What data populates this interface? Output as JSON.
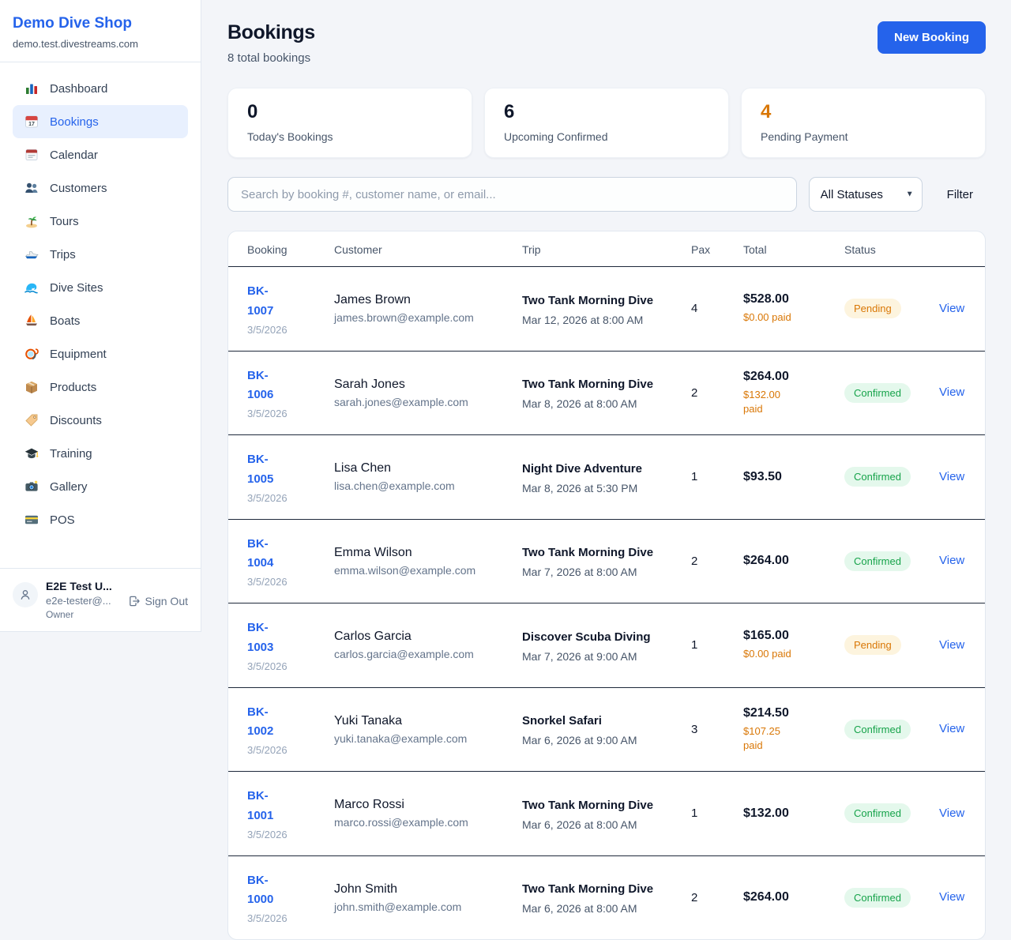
{
  "sidebar": {
    "title": "Demo Dive Shop",
    "domain": "demo.test.divestreams.com",
    "items": [
      {
        "label": "Dashboard",
        "icon": "bar-chart"
      },
      {
        "label": "Bookings",
        "icon": "calendar-date",
        "active": true
      },
      {
        "label": "Calendar",
        "icon": "calendar-pad"
      },
      {
        "label": "Customers",
        "icon": "people"
      },
      {
        "label": "Tours",
        "icon": "island"
      },
      {
        "label": "Trips",
        "icon": "speedboat"
      },
      {
        "label": "Dive Sites",
        "icon": "wave"
      },
      {
        "label": "Boats",
        "icon": "sailboat"
      },
      {
        "label": "Equipment",
        "icon": "dive-mask"
      },
      {
        "label": "Products",
        "icon": "package"
      },
      {
        "label": "Discounts",
        "icon": "tag"
      },
      {
        "label": "Training",
        "icon": "graduation-cap"
      },
      {
        "label": "Gallery",
        "icon": "camera"
      },
      {
        "label": "POS",
        "icon": "credit-card"
      }
    ],
    "user": {
      "name": "E2E Test U...",
      "email": "e2e-tester@...",
      "role": "Owner",
      "sign_out_label": "Sign Out"
    }
  },
  "header": {
    "title": "Bookings",
    "subtitle": "8 total bookings",
    "new_booking_label": "New Booking"
  },
  "stats": [
    {
      "value": "0",
      "label": "Today's Bookings"
    },
    {
      "value": "6",
      "label": "Upcoming Confirmed"
    },
    {
      "value": "4",
      "label": "Pending Payment",
      "color": "orange"
    }
  ],
  "filters": {
    "search_placeholder": "Search by booking #, customer name, or email...",
    "status_selected": "All Statuses",
    "filter_label": "Filter"
  },
  "table": {
    "columns": [
      "Booking",
      "Customer",
      "Trip",
      "Pax",
      "Total",
      "Status"
    ],
    "view_label": "View",
    "rows": [
      {
        "booking_id": "BK-1007",
        "booking_date": "3/5/2026",
        "customer_name": "James Brown",
        "customer_email": "james.brown@example.com",
        "trip_name": "Two Tank Morning Dive",
        "trip_datetime": "Mar 12, 2026 at 8:00 AM",
        "pax": "4",
        "total": "$528.00",
        "paid": "$0.00 paid",
        "status": "Pending"
      },
      {
        "booking_id": "BK-1006",
        "booking_date": "3/5/2026",
        "customer_name": "Sarah Jones",
        "customer_email": "sarah.jones@example.com",
        "trip_name": "Two Tank Morning Dive",
        "trip_datetime": "Mar 8, 2026 at 8:00 AM",
        "pax": "2",
        "total": "$264.00",
        "paid": "$132.00 paid",
        "status": "Confirmed"
      },
      {
        "booking_id": "BK-1005",
        "booking_date": "3/5/2026",
        "customer_name": "Lisa Chen",
        "customer_email": "lisa.chen@example.com",
        "trip_name": "Night Dive Adventure",
        "trip_datetime": "Mar 8, 2026 at 5:30 PM",
        "pax": "1",
        "total": "$93.50",
        "status": "Confirmed"
      },
      {
        "booking_id": "BK-1004",
        "booking_date": "3/5/2026",
        "customer_name": "Emma Wilson",
        "customer_email": "emma.wilson@example.com",
        "trip_name": "Two Tank Morning Dive",
        "trip_datetime": "Mar 7, 2026 at 8:00 AM",
        "pax": "2",
        "total": "$264.00",
        "status": "Confirmed"
      },
      {
        "booking_id": "BK-1003",
        "booking_date": "3/5/2026",
        "customer_name": "Carlos Garcia",
        "customer_email": "carlos.garcia@example.com",
        "trip_name": "Discover Scuba Diving",
        "trip_datetime": "Mar 7, 2026 at 9:00 AM",
        "pax": "1",
        "total": "$165.00",
        "paid": "$0.00 paid",
        "status": "Pending"
      },
      {
        "booking_id": "BK-1002",
        "booking_date": "3/5/2026",
        "customer_name": "Yuki Tanaka",
        "customer_email": "yuki.tanaka@example.com",
        "trip_name": "Snorkel Safari",
        "trip_datetime": "Mar 6, 2026 at 9:00 AM",
        "pax": "3",
        "total": "$214.50",
        "paid": "$107.25 paid",
        "status": "Confirmed"
      },
      {
        "booking_id": "BK-1001",
        "booking_date": "3/5/2026",
        "customer_name": "Marco Rossi",
        "customer_email": "marco.rossi@example.com",
        "trip_name": "Two Tank Morning Dive",
        "trip_datetime": "Mar 6, 2026 at 8:00 AM",
        "pax": "1",
        "total": "$132.00",
        "status": "Confirmed"
      },
      {
        "booking_id": "BK-1000",
        "booking_date": "3/5/2026",
        "customer_name": "John Smith",
        "customer_email": "john.smith@example.com",
        "trip_name": "Two Tank Morning Dive",
        "trip_datetime": "Mar 6, 2026 at 8:00 AM",
        "pax": "2",
        "total": "$264.00",
        "status": "Confirmed"
      }
    ]
  },
  "colors": {
    "accent_blue": "#2563eb",
    "pending_text": "#d97706",
    "pending_bg": "#fdf4de",
    "confirmed_text": "#16a34a",
    "confirmed_bg": "#e4f8ec",
    "page_bg": "#f3f5f9"
  }
}
